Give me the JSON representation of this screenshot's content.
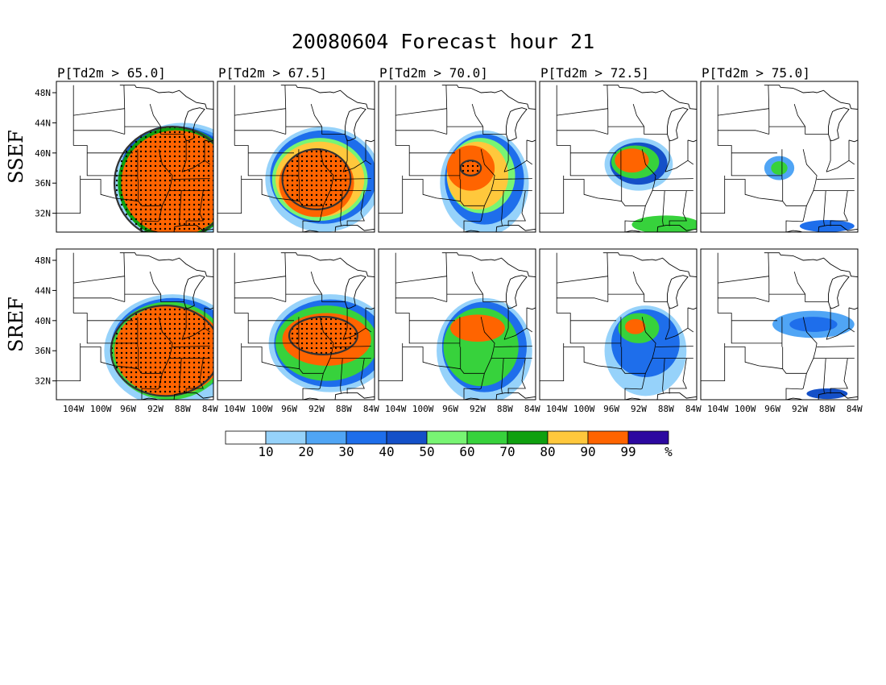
{
  "title": "20080604 Forecast hour 21",
  "panel_titles": [
    "P[Td2m > 65.0]",
    "P[Td2m > 67.5]",
    "P[Td2m > 70.0]",
    "P[Td2m > 72.5]",
    "P[Td2m > 75.0]"
  ],
  "row_labels": [
    "SSEF",
    "SREF"
  ],
  "lat_labels": [
    "48N",
    "44N",
    "40N",
    "36N",
    "32N"
  ],
  "lon_labels": [
    "104W",
    "100W",
    "96W",
    "92W",
    "88W",
    "84W"
  ],
  "colorbar": {
    "labels": [
      "10",
      "20",
      "30",
      "40",
      "50",
      "60",
      "70",
      "80",
      "90",
      "99"
    ],
    "unit": "%",
    "colors": [
      "#ffffff",
      "#96d2fa",
      "#50a5f5",
      "#1e6eeb",
      "#1450c8",
      "#78f573",
      "#37d23c",
      "#0fa00f",
      "#ffc83c",
      "#ff6400",
      "#2c08a0"
    ]
  },
  "map_data": {
    "type": "probability-filled-contour",
    "lat_range": [
      29.5,
      49.5
    ],
    "lon_range": [
      -106.5,
      -83.5
    ],
    "rows": [
      {
        "label": "SSEF",
        "panels": [
          {
            "threshold": "P[Td2m > 65.0]",
            "blobs": [
              {
                "lon": -88,
                "lat": 36,
                "rx": 10,
                "ry": 8,
                "level": 1
              },
              {
                "lon": -88,
                "lat": 37,
                "rx": 9,
                "ry": 6.5,
                "level": 2
              },
              {
                "lon": -88.5,
                "lat": 37.5,
                "rx": 8.5,
                "ry": 5.8,
                "level": 3
              },
              {
                "lon": -89,
                "lat": 38,
                "rx": 8,
                "ry": 5.5,
                "level": 4
              },
              {
                "lon": -89,
                "lat": 36,
                "rx": 8.5,
                "ry": 7.5,
                "level": 7
              },
              {
                "lon": -89,
                "lat": 36,
                "rx": 8,
                "ry": 7,
                "level": 9
              }
            ],
            "stipple": {
              "lon": -89.5,
              "lat": 36,
              "rx": 8.5,
              "ry": 7.5
            }
          },
          {
            "threshold": "P[Td2m > 67.5]",
            "blobs": [
              {
                "lon": -91,
                "lat": 36.5,
                "rx": 8.5,
                "ry": 7,
                "level": 1
              },
              {
                "lon": -91,
                "lat": 36.8,
                "rx": 7.8,
                "ry": 6.2,
                "level": 3
              },
              {
                "lon": -91.5,
                "lat": 36.5,
                "rx": 7,
                "ry": 5.5,
                "level": 5
              },
              {
                "lon": -91.5,
                "lat": 36.5,
                "rx": 6.5,
                "ry": 5,
                "level": 8
              },
              {
                "lon": -92,
                "lat": 36,
                "rx": 5.5,
                "ry": 4.5,
                "level": 9
              }
            ],
            "stipple": {
              "lon": -92,
              "lat": 36.5,
              "rx": 5,
              "ry": 4
            }
          },
          {
            "threshold": "P[Td2m > 70.0]",
            "blobs": [
              {
                "lon": -91,
                "lat": 36,
                "rx": 6.5,
                "ry": 7,
                "level": 1
              },
              {
                "lon": -91,
                "lat": 36.5,
                "rx": 5.8,
                "ry": 6,
                "level": 3
              },
              {
                "lon": -91.5,
                "lat": 37,
                "rx": 5,
                "ry": 5,
                "level": 5
              },
              {
                "lon": -92,
                "lat": 37,
                "rx": 4.5,
                "ry": 4.5,
                "level": 8
              },
              {
                "lon": -93,
                "lat": 38,
                "rx": 3.5,
                "ry": 3,
                "level": 9
              }
            ],
            "stipple": {
              "lon": -93,
              "lat": 38,
              "rx": 1.5,
              "ry": 1
            }
          },
          {
            "threshold": "P[Td2m > 72.5]",
            "blobs": [
              {
                "lon": -92,
                "lat": 38.5,
                "rx": 5,
                "ry": 3.5,
                "level": 1
              },
              {
                "lon": -92,
                "lat": 38.6,
                "rx": 4.2,
                "ry": 2.8,
                "level": 4
              },
              {
                "lon": -92.5,
                "lat": 38.8,
                "rx": 3.5,
                "ry": 2.2,
                "level": 6
              },
              {
                "lon": -93,
                "lat": 39,
                "rx": 2.5,
                "ry": 1.6,
                "level": 9
              },
              {
                "lon": -88,
                "lat": 30.5,
                "rx": 5,
                "ry": 1.2,
                "level": 6
              }
            ],
            "stipple": null
          },
          {
            "threshold": "P[Td2m > 75.0]",
            "blobs": [
              {
                "lon": -95,
                "lat": 38,
                "rx": 2.2,
                "ry": 1.6,
                "level": 2
              },
              {
                "lon": -95,
                "lat": 38,
                "rx": 1.2,
                "ry": 0.9,
                "level": 6
              },
              {
                "lon": -88,
                "lat": 30.3,
                "rx": 4,
                "ry": 0.8,
                "level": 3
              }
            ],
            "stipple": null
          }
        ]
      },
      {
        "label": "SREF",
        "panels": [
          {
            "threshold": "P[Td2m > 65.0]",
            "blobs": [
              {
                "lon": -89.5,
                "lat": 36,
                "rx": 10,
                "ry": 7.5,
                "level": 1
              },
              {
                "lon": -89.5,
                "lat": 36.5,
                "rx": 9,
                "ry": 6.5,
                "level": 3
              },
              {
                "lon": -90,
                "lat": 36,
                "rx": 8.5,
                "ry": 6.5,
                "level": 6
              },
              {
                "lon": -90,
                "lat": 36,
                "rx": 8,
                "ry": 6,
                "level": 9
              }
            ],
            "stipple": {
              "lon": -90.5,
              "lat": 36,
              "rx": 8,
              "ry": 6
            }
          },
          {
            "threshold": "P[Td2m > 67.5]",
            "blobs": [
              {
                "lon": -90,
                "lat": 37,
                "rx": 9,
                "ry": 6.5,
                "level": 1
              },
              {
                "lon": -90,
                "lat": 37,
                "rx": 8.2,
                "ry": 5.8,
                "level": 3
              },
              {
                "lon": -90.5,
                "lat": 37,
                "rx": 7.5,
                "ry": 5,
                "level": 6
              },
              {
                "lon": -90.5,
                "lat": 37.5,
                "rx": 6.5,
                "ry": 3.5,
                "level": 9
              }
            ],
            "stipple": {
              "lon": -91,
              "lat": 38,
              "rx": 5,
              "ry": 2.5
            }
          },
          {
            "threshold": "P[Td2m > 70.0]",
            "blobs": [
              {
                "lon": -91,
                "lat": 36,
                "rx": 7,
                "ry": 7,
                "level": 1
              },
              {
                "lon": -91,
                "lat": 36.5,
                "rx": 6.2,
                "ry": 6,
                "level": 3
              },
              {
                "lon": -91.5,
                "lat": 36.5,
                "rx": 5.5,
                "ry": 5.2,
                "level": 6
              },
              {
                "lon": -92,
                "lat": 39,
                "rx": 4,
                "ry": 1.8,
                "level": 9
              }
            ],
            "stipple": null
          },
          {
            "threshold": "P[Td2m > 72.5]",
            "blobs": [
              {
                "lon": -91,
                "lat": 36,
                "rx": 6,
                "ry": 6,
                "level": 1
              },
              {
                "lon": -91,
                "lat": 37,
                "rx": 5,
                "ry": 4.5,
                "level": 3
              },
              {
                "lon": -92,
                "lat": 39,
                "rx": 3,
                "ry": 2,
                "level": 6
              },
              {
                "lon": -92.5,
                "lat": 39.2,
                "rx": 1.5,
                "ry": 1,
                "level": 9
              }
            ],
            "stipple": null
          },
          {
            "threshold": "P[Td2m > 75.0]",
            "blobs": [
              {
                "lon": -90,
                "lat": 39.5,
                "rx": 6,
                "ry": 1.8,
                "level": 2
              },
              {
                "lon": -90,
                "lat": 39.5,
                "rx": 3.5,
                "ry": 1,
                "level": 3
              },
              {
                "lon": -88,
                "lat": 30.3,
                "rx": 3,
                "ry": 0.7,
                "level": 4
              }
            ],
            "stipple": null
          }
        ]
      }
    ]
  }
}
